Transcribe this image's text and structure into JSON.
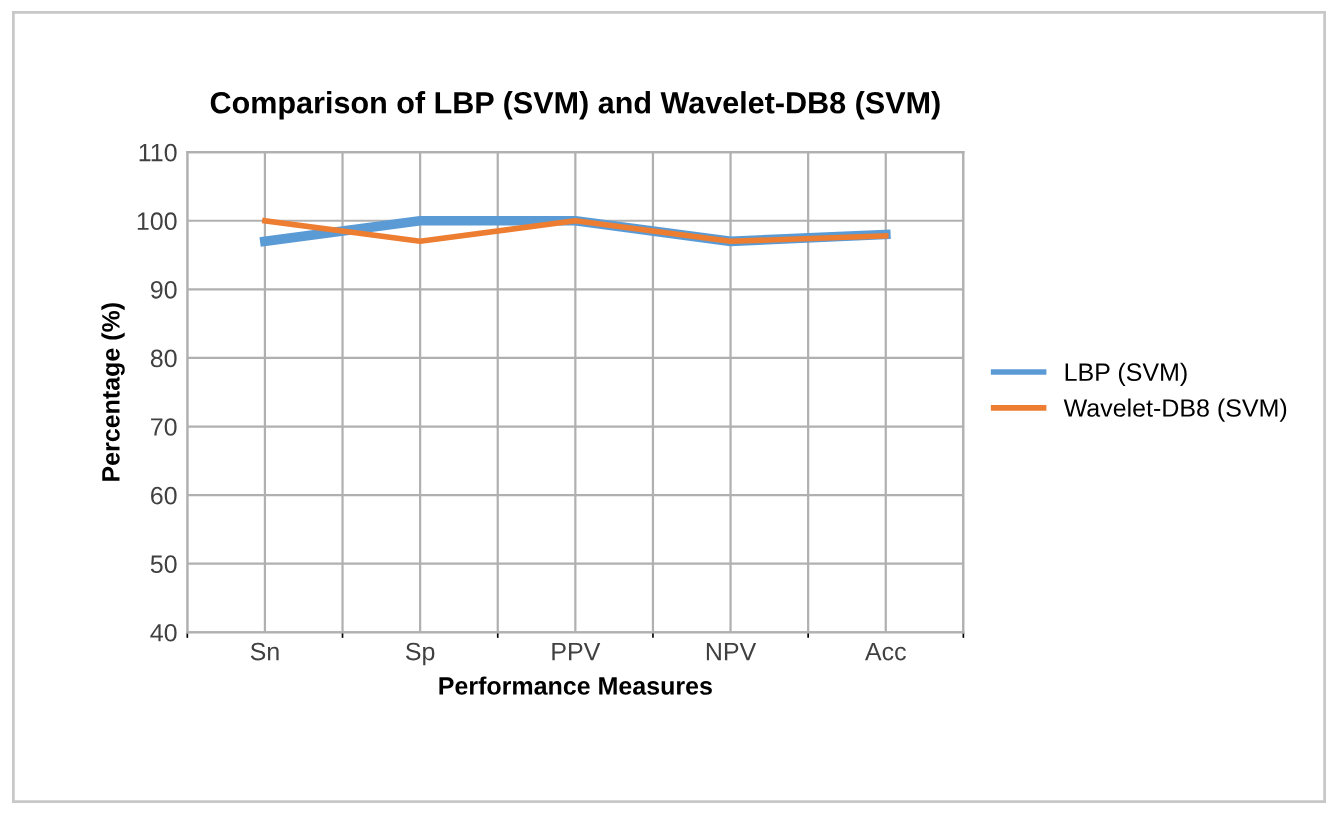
{
  "chart_data": {
    "type": "line",
    "title": "Comparison of LBP (SVM) and Wavelet-DB8 (SVM)",
    "xlabel": "Performance Measures",
    "ylabel": "Percentage (%)",
    "categories": [
      "Sn",
      "Sp",
      "PPV",
      "NPV",
      "Acc"
    ],
    "series": [
      {
        "name": "LBP (SVM)",
        "color": "#5b9bd5",
        "values": [
          97,
          100,
          100,
          97,
          98
        ]
      },
      {
        "name": "Wavelet-DB8 (SVM)",
        "color": "#ed7d31",
        "values": [
          100,
          97,
          100,
          97,
          97.8
        ]
      }
    ],
    "ylim": [
      40,
      110
    ],
    "yticks": [
      40,
      50,
      60,
      70,
      80,
      90,
      100,
      110
    ],
    "grid": true,
    "legend": "right",
    "marker": "none",
    "line_style": "solid"
  }
}
